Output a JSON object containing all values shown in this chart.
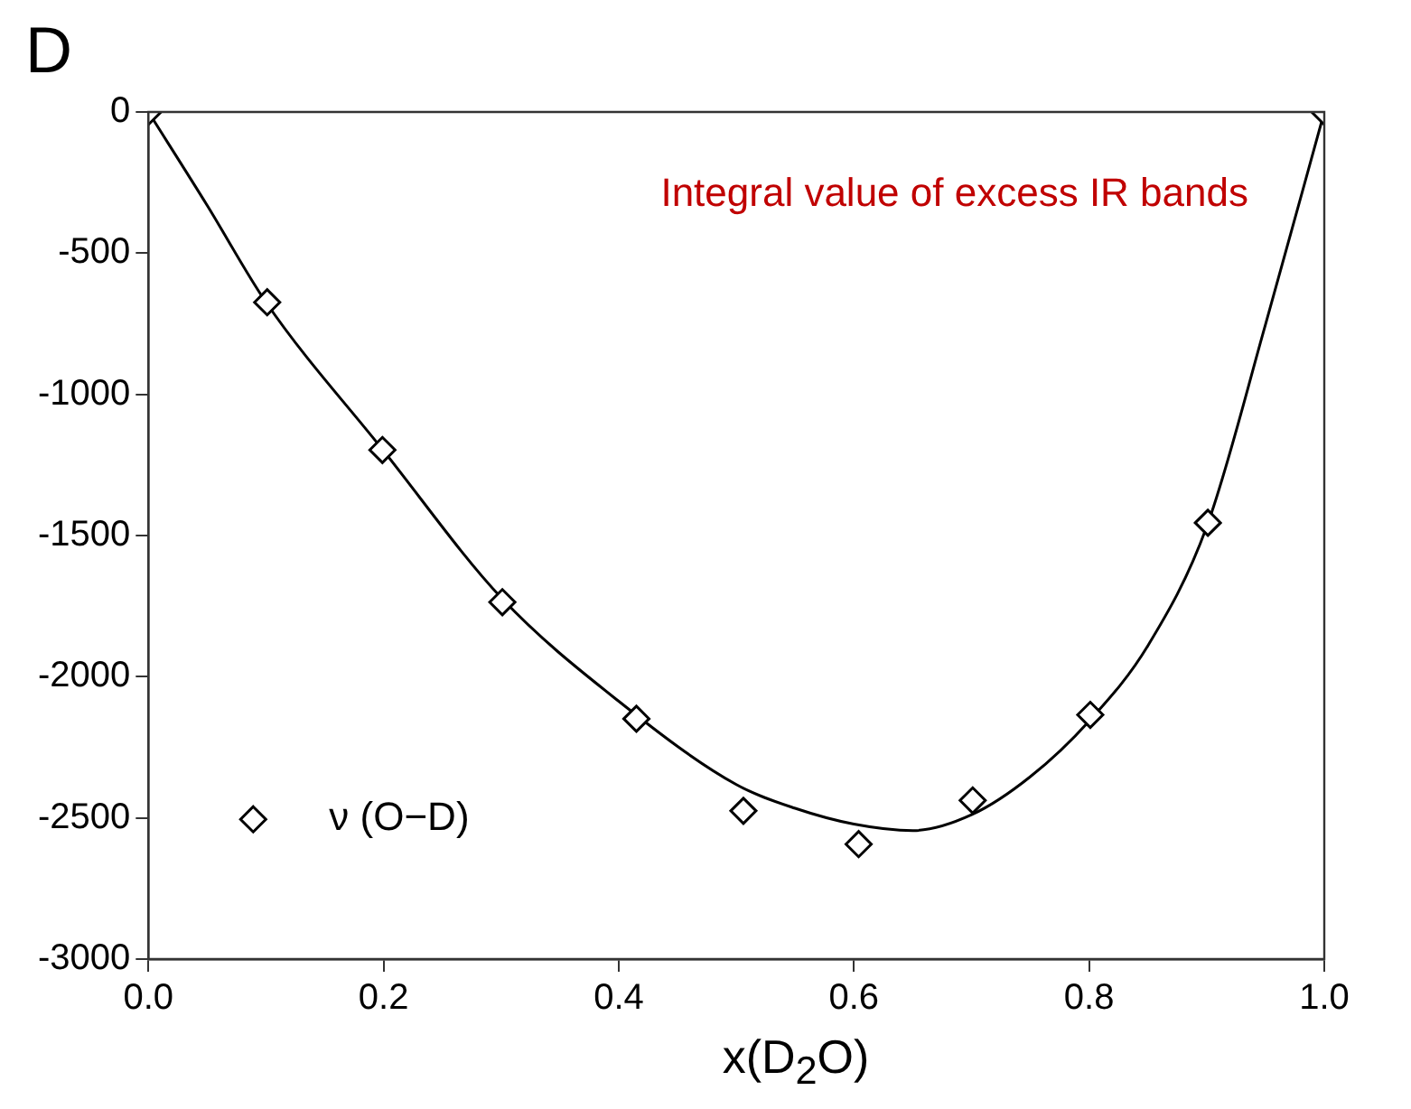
{
  "chart_data": {
    "type": "scatter",
    "xlabel": "x(D$_{2}$O)",
    "annotations": [
      "D",
      "Integral value of excess IR bands"
    ],
    "xlim": [
      0,
      1
    ],
    "xticks": [
      {
        "value": 0,
        "label": "0.0"
      },
      {
        "value": 0.2,
        "label": "0.2"
      },
      {
        "value": 0.4,
        "label": "0.4"
      },
      {
        "value": 0.6,
        "label": "0.6"
      },
      {
        "value": 0.8,
        "label": "0.8"
      },
      {
        "value": 1,
        "label": "1.0"
      }
    ],
    "ylim": [
      -3000,
      0
    ],
    "yticks": [
      -3000,
      -2500,
      -2000,
      -1500,
      -1000,
      -500,
      0
    ],
    "grid": false,
    "legend": "bottom left",
    "marker": "diamond",
    "series": [
      {
        "name": "ν (O−D)",
        "color": "#000000",
        "x": [
          0,
          0.101,
          0.199,
          0.301,
          0.415,
          0.506,
          0.604,
          0.701,
          0.801,
          0.901,
          1
        ],
        "values": [
          0,
          -674,
          -1197,
          -1736,
          -2149,
          -2475,
          -2593,
          -2438,
          -2135,
          -1455,
          0
        ]
      },
      {
        "type": "line",
        "color": "#000000",
        "line_style": "solid",
        "marker": "none",
        "x": [
          0,
          0.05,
          0.1,
          0.2,
          0.3,
          0.4,
          0.5,
          0.55,
          0.6,
          0.65,
          0.7,
          0.75,
          0.8,
          0.85,
          0.9,
          0.95,
          1
        ],
        "values": [
          0,
          -331,
          -674,
          -1200,
          -1720,
          -2087,
          -2382,
          -2466,
          -2522,
          -2545,
          -2489,
          -2354,
          -2157,
          -1890,
          -1469,
          -753,
          0
        ]
      }
    ]
  }
}
